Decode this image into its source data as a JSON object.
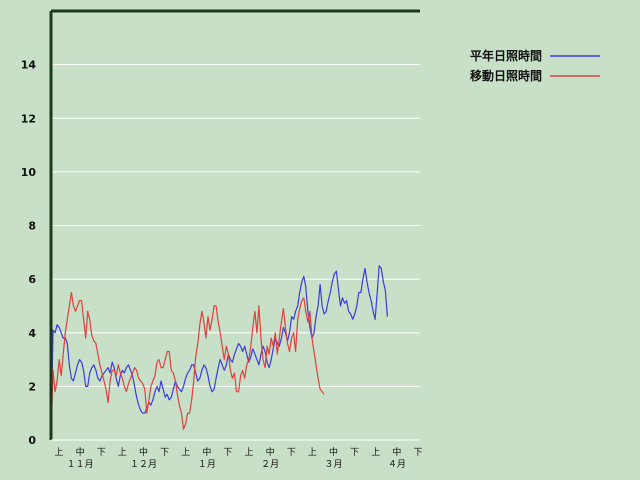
{
  "chart_data": {
    "type": "line",
    "ylim": [
      0,
      16
    ],
    "yticks": [
      0,
      2,
      4,
      6,
      8,
      10,
      12,
      14
    ],
    "grid": true,
    "legend_position": "top-right",
    "x_days": [
      1,
      182
    ],
    "x_periods": [
      "上",
      "中",
      "下",
      "上",
      "中",
      "下",
      "上",
      "中",
      "下",
      "上",
      "中",
      "下",
      "上",
      "中",
      "下",
      "上",
      "中",
      "下"
    ],
    "x_months": [
      "１１月",
      "１２月",
      "１月",
      "２月",
      "３月",
      "４月"
    ],
    "series": [
      {
        "name": "平年日照時間",
        "color": "#3c3cdc",
        "points": [
          [
            1,
            0.0
          ],
          [
            2,
            4.1
          ],
          [
            3,
            4.0
          ],
          [
            4,
            4.3
          ],
          [
            5,
            4.2
          ],
          [
            6,
            4.0
          ],
          [
            7,
            3.8
          ],
          [
            8,
            3.8
          ],
          [
            9,
            3.6
          ],
          [
            10,
            2.8
          ],
          [
            11,
            2.3
          ],
          [
            12,
            2.2
          ],
          [
            13,
            2.5
          ],
          [
            14,
            2.8
          ],
          [
            15,
            3.0
          ],
          [
            16,
            2.9
          ],
          [
            17,
            2.6
          ],
          [
            18,
            2.0
          ],
          [
            19,
            2.0
          ],
          [
            20,
            2.5
          ],
          [
            21,
            2.7
          ],
          [
            22,
            2.8
          ],
          [
            23,
            2.6
          ],
          [
            24,
            2.3
          ],
          [
            25,
            2.2
          ],
          [
            26,
            2.4
          ],
          [
            27,
            2.5
          ],
          [
            28,
            2.6
          ],
          [
            29,
            2.7
          ],
          [
            30,
            2.5
          ],
          [
            31,
            2.9
          ],
          [
            32,
            2.7
          ],
          [
            33,
            2.3
          ],
          [
            34,
            2.0
          ],
          [
            35,
            2.4
          ],
          [
            36,
            2.6
          ],
          [
            37,
            2.5
          ],
          [
            38,
            2.7
          ],
          [
            39,
            2.8
          ],
          [
            40,
            2.6
          ],
          [
            41,
            2.4
          ],
          [
            42,
            2.0
          ],
          [
            43,
            1.6
          ],
          [
            44,
            1.3
          ],
          [
            45,
            1.1
          ],
          [
            46,
            1.0
          ],
          [
            47,
            1.0
          ],
          [
            48,
            1.2
          ],
          [
            49,
            1.4
          ],
          [
            50,
            1.3
          ],
          [
            51,
            1.5
          ],
          [
            52,
            1.8
          ],
          [
            53,
            2.0
          ],
          [
            54,
            1.8
          ],
          [
            55,
            2.2
          ],
          [
            56,
            1.9
          ],
          [
            57,
            1.6
          ],
          [
            58,
            1.7
          ],
          [
            59,
            1.5
          ],
          [
            60,
            1.6
          ],
          [
            61,
            1.9
          ],
          [
            62,
            2.2
          ],
          [
            63,
            2.0
          ],
          [
            64,
            1.9
          ],
          [
            65,
            1.8
          ],
          [
            66,
            2.0
          ],
          [
            67,
            2.3
          ],
          [
            68,
            2.5
          ],
          [
            69,
            2.6
          ],
          [
            70,
            2.8
          ],
          [
            71,
            2.8
          ],
          [
            72,
            2.5
          ],
          [
            73,
            2.2
          ],
          [
            74,
            2.3
          ],
          [
            75,
            2.6
          ],
          [
            76,
            2.8
          ],
          [
            77,
            2.7
          ],
          [
            78,
            2.4
          ],
          [
            79,
            2.0
          ],
          [
            80,
            1.8
          ],
          [
            81,
            1.9
          ],
          [
            82,
            2.3
          ],
          [
            83,
            2.7
          ],
          [
            84,
            3.0
          ],
          [
            85,
            2.8
          ],
          [
            86,
            2.6
          ],
          [
            87,
            2.8
          ],
          [
            88,
            3.2
          ],
          [
            89,
            3.0
          ],
          [
            90,
            2.9
          ],
          [
            91,
            3.2
          ],
          [
            92,
            3.4
          ],
          [
            93,
            3.6
          ],
          [
            94,
            3.5
          ],
          [
            95,
            3.3
          ],
          [
            96,
            3.5
          ],
          [
            97,
            3.2
          ],
          [
            98,
            2.9
          ],
          [
            99,
            3.1
          ],
          [
            100,
            3.4
          ],
          [
            101,
            3.2
          ],
          [
            102,
            3.0
          ],
          [
            103,
            2.8
          ],
          [
            104,
            3.2
          ],
          [
            105,
            3.5
          ],
          [
            106,
            3.3
          ],
          [
            107,
            2.9
          ],
          [
            108,
            2.7
          ],
          [
            109,
            3.0
          ],
          [
            110,
            3.4
          ],
          [
            111,
            3.8
          ],
          [
            112,
            3.6
          ],
          [
            113,
            3.5
          ],
          [
            114,
            3.8
          ],
          [
            115,
            4.2
          ],
          [
            116,
            4.0
          ],
          [
            117,
            3.7
          ],
          [
            118,
            4.0
          ],
          [
            119,
            4.6
          ],
          [
            120,
            4.5
          ],
          [
            121,
            4.8
          ],
          [
            122,
            5.0
          ],
          [
            123,
            5.5
          ],
          [
            124,
            5.9
          ],
          [
            125,
            6.1
          ],
          [
            126,
            5.7
          ],
          [
            127,
            4.8
          ],
          [
            128,
            4.2
          ],
          [
            129,
            3.8
          ],
          [
            130,
            4.0
          ],
          [
            131,
            4.6
          ],
          [
            132,
            5.0
          ],
          [
            133,
            5.8
          ],
          [
            134,
            5.0
          ],
          [
            135,
            4.7
          ],
          [
            136,
            4.8
          ],
          [
            137,
            5.2
          ],
          [
            138,
            5.5
          ],
          [
            139,
            5.9
          ],
          [
            140,
            6.2
          ],
          [
            141,
            6.3
          ],
          [
            142,
            5.6
          ],
          [
            143,
            5.0
          ],
          [
            144,
            5.3
          ],
          [
            145,
            5.1
          ],
          [
            146,
            5.2
          ],
          [
            147,
            4.8
          ],
          [
            148,
            4.7
          ],
          [
            149,
            4.5
          ],
          [
            150,
            4.7
          ],
          [
            151,
            5.0
          ],
          [
            152,
            5.5
          ],
          [
            153,
            5.5
          ],
          [
            154,
            6.0
          ],
          [
            155,
            6.4
          ],
          [
            156,
            5.9
          ],
          [
            157,
            5.5
          ],
          [
            158,
            5.2
          ],
          [
            159,
            4.8
          ],
          [
            160,
            4.5
          ],
          [
            161,
            5.5
          ],
          [
            162,
            6.5
          ],
          [
            163,
            6.4
          ],
          [
            164,
            5.9
          ],
          [
            165,
            5.6
          ],
          [
            166,
            4.6
          ]
        ]
      },
      {
        "name": "移動日照時間",
        "color": "#e04040",
        "points": [
          [
            1,
            0.0
          ],
          [
            2,
            2.6
          ],
          [
            3,
            1.8
          ],
          [
            4,
            2.2
          ],
          [
            5,
            3.0
          ],
          [
            6,
            2.4
          ],
          [
            7,
            3.2
          ],
          [
            8,
            4.0
          ],
          [
            9,
            4.5
          ],
          [
            10,
            5.0
          ],
          [
            11,
            5.5
          ],
          [
            12,
            5.0
          ],
          [
            13,
            4.8
          ],
          [
            14,
            5.0
          ],
          [
            15,
            5.2
          ],
          [
            16,
            5.2
          ],
          [
            17,
            4.5
          ],
          [
            18,
            3.8
          ],
          [
            19,
            4.8
          ],
          [
            20,
            4.5
          ],
          [
            21,
            3.9
          ],
          [
            22,
            3.7
          ],
          [
            23,
            3.6
          ],
          [
            24,
            3.2
          ],
          [
            25,
            2.8
          ],
          [
            26,
            2.5
          ],
          [
            27,
            2.2
          ],
          [
            28,
            1.9
          ],
          [
            29,
            1.4
          ],
          [
            30,
            2.2
          ],
          [
            31,
            2.6
          ],
          [
            32,
            2.6
          ],
          [
            33,
            2.4
          ],
          [
            34,
            2.8
          ],
          [
            35,
            2.5
          ],
          [
            36,
            2.3
          ],
          [
            37,
            2.0
          ],
          [
            38,
            1.8
          ],
          [
            39,
            2.1
          ],
          [
            40,
            2.3
          ],
          [
            41,
            2.5
          ],
          [
            42,
            2.7
          ],
          [
            43,
            2.6
          ],
          [
            44,
            2.3
          ],
          [
            45,
            2.2
          ],
          [
            46,
            2.1
          ],
          [
            47,
            1.9
          ],
          [
            48,
            1.0
          ],
          [
            49,
            1.5
          ],
          [
            50,
            2.0
          ],
          [
            51,
            2.2
          ],
          [
            52,
            2.4
          ],
          [
            53,
            2.9
          ],
          [
            54,
            3.0
          ],
          [
            55,
            2.7
          ],
          [
            56,
            2.7
          ],
          [
            57,
            3.0
          ],
          [
            58,
            3.3
          ],
          [
            59,
            3.3
          ],
          [
            60,
            2.6
          ],
          [
            61,
            2.5
          ],
          [
            62,
            2.2
          ],
          [
            63,
            1.7
          ],
          [
            64,
            1.3
          ],
          [
            65,
            1.0
          ],
          [
            66,
            0.4
          ],
          [
            67,
            0.6
          ],
          [
            68,
            1.0
          ],
          [
            69,
            1.0
          ],
          [
            70,
            1.5
          ],
          [
            71,
            2.2
          ],
          [
            72,
            3.1
          ],
          [
            73,
            3.6
          ],
          [
            74,
            4.3
          ],
          [
            75,
            4.8
          ],
          [
            76,
            4.4
          ],
          [
            77,
            3.8
          ],
          [
            78,
            4.6
          ],
          [
            79,
            4.1
          ],
          [
            80,
            4.5
          ],
          [
            81,
            5.0
          ],
          [
            82,
            5.0
          ],
          [
            83,
            4.4
          ],
          [
            84,
            4.0
          ],
          [
            85,
            3.5
          ],
          [
            86,
            3.0
          ],
          [
            87,
            3.5
          ],
          [
            88,
            3.2
          ],
          [
            89,
            2.6
          ],
          [
            90,
            2.3
          ],
          [
            91,
            2.5
          ],
          [
            92,
            1.8
          ],
          [
            93,
            1.8
          ],
          [
            94,
            2.4
          ],
          [
            95,
            2.6
          ],
          [
            96,
            2.3
          ],
          [
            97,
            2.8
          ],
          [
            98,
            3.0
          ],
          [
            99,
            3.5
          ],
          [
            100,
            4.2
          ],
          [
            101,
            4.8
          ],
          [
            102,
            4.0
          ],
          [
            103,
            5.0
          ],
          [
            104,
            3.8
          ],
          [
            105,
            3.0
          ],
          [
            106,
            2.7
          ],
          [
            107,
            3.5
          ],
          [
            108,
            3.2
          ],
          [
            109,
            3.8
          ],
          [
            110,
            3.5
          ],
          [
            111,
            4.0
          ],
          [
            112,
            3.2
          ],
          [
            113,
            3.8
          ],
          [
            114,
            4.4
          ],
          [
            115,
            4.9
          ],
          [
            116,
            4.2
          ],
          [
            117,
            3.6
          ],
          [
            118,
            3.3
          ],
          [
            119,
            3.8
          ],
          [
            120,
            4.0
          ],
          [
            121,
            3.3
          ],
          [
            122,
            4.5
          ],
          [
            123,
            4.9
          ],
          [
            124,
            5.2
          ],
          [
            125,
            5.3
          ],
          [
            126,
            4.8
          ],
          [
            127,
            4.4
          ],
          [
            128,
            4.8
          ],
          [
            129,
            3.8
          ],
          [
            130,
            3.3
          ],
          [
            131,
            2.8
          ],
          [
            132,
            2.3
          ],
          [
            133,
            1.9
          ],
          [
            134,
            1.8
          ],
          [
            135,
            1.7
          ]
        ]
      }
    ]
  }
}
